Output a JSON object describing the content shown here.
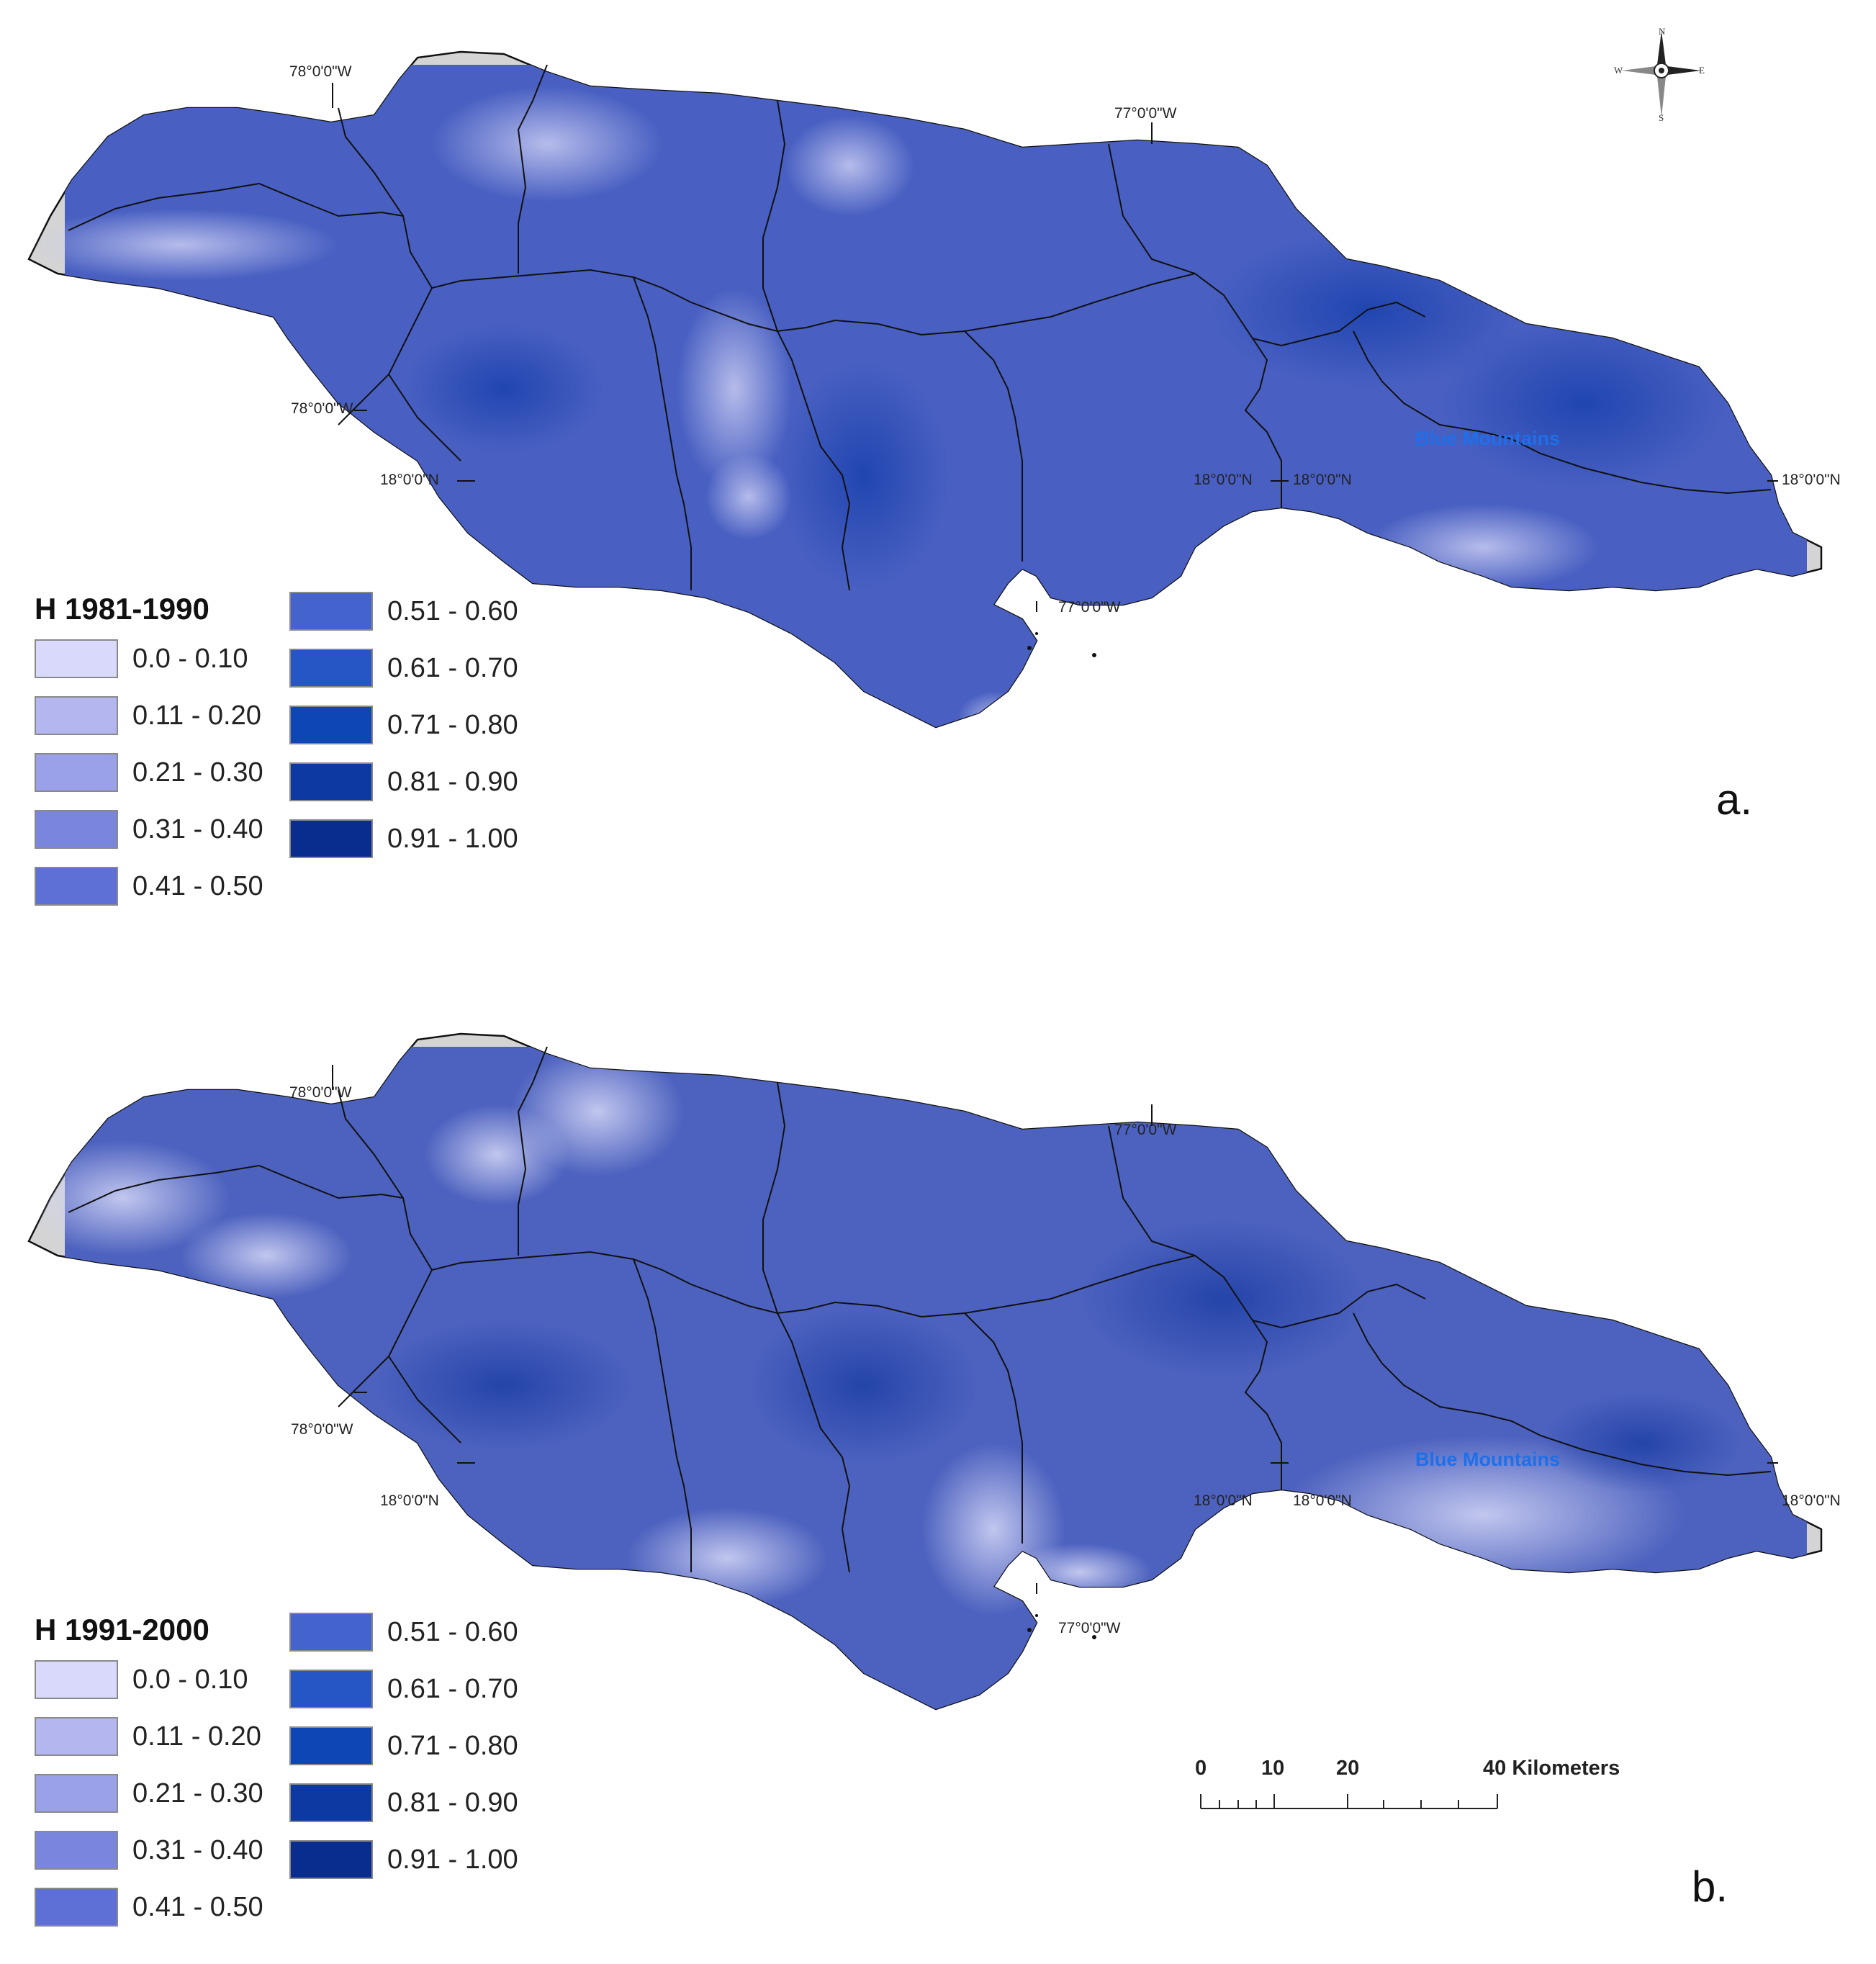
{
  "maps": [
    {
      "id": "a",
      "legend_title": "H 1981-1990",
      "panel_letter": "a.",
      "fill_color": "#4960c2",
      "coords": {
        "lon_78_top": "78°0'0\"W",
        "lon_77_top": "77°0'0\"W",
        "lon_78_left": "78°0'0\"W",
        "lat_18_left": "18°0'0\"N",
        "lat_18_mid1": "18°0'0\"N",
        "lat_18_mid2": "18°0'0\"N",
        "lat_18_right": "18°0'0\"N",
        "lon_77_bottom": "77°0'0\"W"
      },
      "place_label": "Blue Mountains",
      "legend": [
        {
          "label": "0.0 - 0.10",
          "color": "#d9dafb"
        },
        {
          "label": "0.11 - 0.20",
          "color": "#b4b7ef"
        },
        {
          "label": "0.21 - 0.30",
          "color": "#9ba1e8"
        },
        {
          "label": "0.31 - 0.40",
          "color": "#7a86de"
        },
        {
          "label": "0.41 - 0.50",
          "color": "#5e70d6"
        },
        {
          "label": "0.51 - 0.60",
          "color": "#4463cd"
        },
        {
          "label": "0.61 - 0.70",
          "color": "#2656c6"
        },
        {
          "label": "0.71 - 0.80",
          "color": "#0f46b6"
        },
        {
          "label": "0.81 - 0.90",
          "color": "#0c3aa2"
        },
        {
          "label": "0.91 - 1.00",
          "color": "#082d8e"
        }
      ]
    },
    {
      "id": "b",
      "legend_title": "H 1991-2000",
      "panel_letter": "b.",
      "fill_color": "#4d62bf",
      "coords": {
        "lon_78_top": "78°0'0\"W",
        "lon_77_top": "77°0'0\"W",
        "lon_78_left": "78°0'0\"W",
        "lat_18_left": "18°0'0\"N",
        "lat_18_mid1": "18°0'0\"N",
        "lat_18_mid2": "18°0'0\"N",
        "lat_18_right": "18°0'0\"N",
        "lon_77_bottom": "77°0'0\"W"
      },
      "place_label": "Blue Mountains",
      "legend": [
        {
          "label": "0.0 - 0.10",
          "color": "#d9dafb"
        },
        {
          "label": "0.11 - 0.20",
          "color": "#b4b7ef"
        },
        {
          "label": "0.21 - 0.30",
          "color": "#9ba1e8"
        },
        {
          "label": "0.31 - 0.40",
          "color": "#7a86de"
        },
        {
          "label": "0.41 - 0.50",
          "color": "#5e70d6"
        },
        {
          "label": "0.51 - 0.60",
          "color": "#4463cd"
        },
        {
          "label": "0.61 - 0.70",
          "color": "#2656c6"
        },
        {
          "label": "0.71 - 0.80",
          "color": "#0f46b6"
        },
        {
          "label": "0.81 - 0.90",
          "color": "#0c3aa2"
        },
        {
          "label": "0.91 - 1.00",
          "color": "#082d8e"
        }
      ]
    }
  ],
  "compass": {
    "n": "N",
    "s": "S",
    "e": "E",
    "w": "W",
    "icon": "north-arrow-icon"
  },
  "scale_bar": {
    "labels": [
      "0",
      "10",
      "20",
      "40 Kilometers"
    ],
    "icon": "scale-bar-icon"
  }
}
